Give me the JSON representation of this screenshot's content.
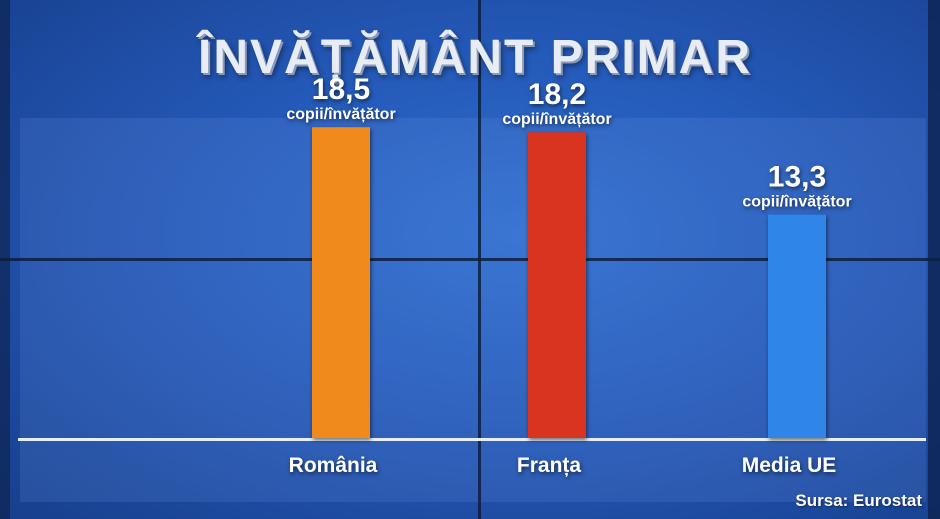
{
  "title": "ÎNVĂȚĂMÂNT PRIMAR",
  "source": "Sursa: Eurostat",
  "colors": {
    "romania": "#f08a1c",
    "franta": "#d9341f",
    "ue": "#2f86e8",
    "baseline": "#e6eef8"
  },
  "chart_data": {
    "type": "bar",
    "title": "ÎNVĂȚĂMÂNT PRIMAR",
    "categories": [
      "România",
      "Franța",
      "Media UE"
    ],
    "values": [
      18.5,
      18.2,
      13.3
    ],
    "value_labels": [
      "18,5",
      "18,2",
      "13,3"
    ],
    "unit_label": "copii/învățător",
    "bar_colors": [
      "#f08a1c",
      "#d9341f",
      "#2f86e8"
    ],
    "ylim": [
      0,
      25
    ],
    "grid": false,
    "legend": "none",
    "xlabel": "",
    "ylabel": ""
  }
}
